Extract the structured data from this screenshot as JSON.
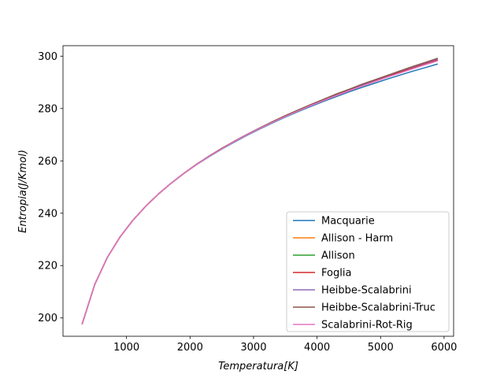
{
  "chart_data": {
    "type": "line",
    "title": "",
    "xlabel": "Temperatura[K]",
    "ylabel": "Entropia(J/Kmol)",
    "xlim": [
      0,
      6150
    ],
    "ylim": [
      193,
      304
    ],
    "xticks": [
      1000,
      2000,
      3000,
      4000,
      5000,
      6000
    ],
    "yticks": [
      200,
      220,
      240,
      260,
      280,
      300
    ],
    "grid": false,
    "legend_position": "lower right",
    "x": [
      300,
      500,
      700,
      900,
      1100,
      1300,
      1500,
      1700,
      1900,
      2100,
      2300,
      2500,
      2700,
      2900,
      3100,
      3300,
      3500,
      3700,
      3900,
      4100,
      4300,
      4500,
      4700,
      4900,
      5100,
      5300,
      5500,
      5700,
      5900
    ],
    "series": [
      {
        "name": "Macquarie",
        "color": "#1f77b4",
        "values": [
          197.6,
          212.8,
          223.2,
          231.0,
          237.3,
          242.6,
          247.3,
          251.4,
          255.1,
          258.5,
          261.6,
          264.5,
          267.2,
          269.8,
          272.2,
          274.5,
          276.7,
          278.8,
          280.8,
          282.7,
          284.5,
          286.3,
          288.0,
          289.6,
          291.2,
          292.7,
          294.2,
          295.6,
          297.0
        ]
      },
      {
        "name": "Allison - Harm",
        "color": "#ff7f0e",
        "values": [
          197.6,
          212.8,
          223.2,
          231.0,
          237.3,
          242.6,
          247.3,
          251.4,
          255.2,
          258.6,
          261.8,
          264.7,
          267.5,
          270.1,
          272.5,
          274.9,
          277.1,
          279.3,
          281.3,
          283.3,
          285.2,
          287.0,
          288.8,
          290.5,
          292.2,
          293.8,
          295.4,
          297.0,
          298.5
        ]
      },
      {
        "name": "Allison",
        "color": "#2ca02c",
        "values": [
          197.6,
          212.8,
          223.2,
          231.0,
          237.3,
          242.6,
          247.3,
          251.4,
          255.2,
          258.6,
          261.8,
          264.7,
          267.5,
          270.1,
          272.6,
          274.9,
          277.2,
          279.3,
          281.4,
          283.4,
          285.3,
          287.2,
          289.0,
          290.7,
          292.4,
          294.1,
          295.7,
          297.3,
          298.9
        ]
      },
      {
        "name": "Foglia",
        "color": "#d62728",
        "values": [
          197.6,
          212.8,
          223.2,
          231.0,
          237.3,
          242.6,
          247.3,
          251.4,
          255.2,
          258.6,
          261.8,
          264.7,
          267.5,
          270.1,
          272.5,
          274.9,
          277.1,
          279.3,
          281.3,
          283.3,
          285.2,
          287.1,
          288.9,
          290.6,
          292.3,
          293.9,
          295.5,
          297.1,
          298.6
        ]
      },
      {
        "name": "Heibbe-Scalabrini",
        "color": "#9467bd",
        "values": [
          197.6,
          212.8,
          223.2,
          231.0,
          237.3,
          242.6,
          247.3,
          251.4,
          255.2,
          258.6,
          261.8,
          264.7,
          267.5,
          270.1,
          272.6,
          274.9,
          277.2,
          279.4,
          281.4,
          283.4,
          285.4,
          287.2,
          289.0,
          290.8,
          292.5,
          294.2,
          295.8,
          297.4,
          298.9
        ]
      },
      {
        "name": "Heibbe-Scalabrini-Truc",
        "color": "#8c564b",
        "values": [
          197.6,
          212.8,
          223.2,
          231.0,
          237.3,
          242.6,
          247.3,
          251.4,
          255.2,
          258.6,
          261.8,
          264.8,
          267.5,
          270.1,
          272.6,
          275.0,
          277.3,
          279.4,
          281.5,
          283.5,
          285.5,
          287.3,
          289.2,
          290.9,
          292.6,
          294.3,
          296.0,
          297.6,
          299.2
        ]
      },
      {
        "name": "Scalabrini-Rot-Rig",
        "color": "#e377c2",
        "values": [
          197.6,
          212.8,
          223.2,
          231.0,
          237.3,
          242.6,
          247.3,
          251.4,
          255.2,
          258.5,
          261.7,
          264.6,
          267.4,
          270.0,
          272.4,
          274.7,
          276.9,
          279.0,
          281.1,
          283.0,
          284.9,
          286.7,
          288.5,
          290.2,
          291.9,
          293.5,
          295.1,
          296.7,
          298.2
        ]
      }
    ]
  }
}
